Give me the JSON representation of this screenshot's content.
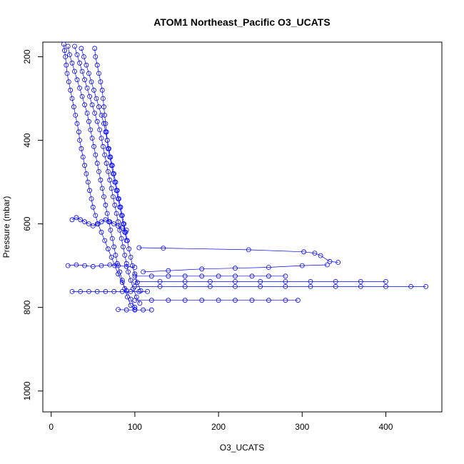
{
  "chart_data": {
    "type": "scatter",
    "title": "ATOM1 Northeast_Pacific O3_UCATS",
    "xlabel": "O3_UCATS",
    "ylabel": "Pressure (mbar)",
    "xlim": [
      -10,
      467
    ],
    "ylim": [
      1050,
      165
    ],
    "y_reversed": true,
    "xticks": [
      0,
      100,
      200,
      300,
      400
    ],
    "yticks": [
      200,
      400,
      600,
      800,
      1000
    ],
    "grid": false,
    "marker": "open-circle",
    "color": "#0000ff",
    "series": [
      {
        "points": [
          [
            15,
            170
          ],
          [
            16,
            185
          ],
          [
            17,
            200
          ],
          [
            18,
            220
          ],
          [
            19,
            240
          ],
          [
            21,
            260
          ],
          [
            23,
            280
          ],
          [
            25,
            300
          ],
          [
            27,
            320
          ],
          [
            29,
            340
          ],
          [
            31,
            360
          ],
          [
            33,
            380
          ],
          [
            34,
            400
          ],
          [
            36,
            420
          ],
          [
            38,
            440
          ],
          [
            40,
            460
          ],
          [
            42,
            480
          ],
          [
            44,
            500
          ],
          [
            46,
            520
          ],
          [
            48,
            540
          ],
          [
            50,
            560
          ],
          [
            53,
            580
          ],
          [
            56,
            600
          ],
          [
            60,
            620
          ],
          [
            64,
            640
          ],
          [
            68,
            660
          ],
          [
            72,
            680
          ],
          [
            76,
            700
          ],
          [
            80,
            720
          ],
          [
            85,
            740
          ],
          [
            90,
            760
          ],
          [
            95,
            780
          ],
          [
            100,
            800
          ]
        ]
      },
      {
        "points": [
          [
            20,
            175
          ],
          [
            22,
            195
          ],
          [
            25,
            215
          ],
          [
            28,
            235
          ],
          [
            31,
            255
          ],
          [
            34,
            275
          ],
          [
            37,
            295
          ],
          [
            40,
            315
          ],
          [
            43,
            335
          ],
          [
            45,
            355
          ],
          [
            47,
            375
          ],
          [
            49,
            395
          ],
          [
            51,
            415
          ],
          [
            53,
            435
          ],
          [
            55,
            455
          ],
          [
            57,
            475
          ],
          [
            59,
            495
          ],
          [
            61,
            515
          ],
          [
            63,
            535
          ],
          [
            65,
            555
          ],
          [
            67,
            575
          ],
          [
            69,
            595
          ],
          [
            71,
            615
          ],
          [
            73,
            635
          ],
          [
            75,
            655
          ],
          [
            77,
            675
          ],
          [
            79,
            695
          ],
          [
            82,
            715
          ],
          [
            85,
            735
          ],
          [
            88,
            755
          ],
          [
            91,
            775
          ],
          [
            95,
            795
          ],
          [
            100,
            805
          ]
        ]
      },
      {
        "points": [
          [
            28,
            175
          ],
          [
            31,
            195
          ],
          [
            34,
            215
          ],
          [
            37,
            235
          ],
          [
            40,
            255
          ],
          [
            43,
            275
          ],
          [
            46,
            295
          ],
          [
            49,
            315
          ],
          [
            52,
            335
          ],
          [
            55,
            355
          ],
          [
            58,
            375
          ],
          [
            60,
            395
          ],
          [
            62,
            415
          ],
          [
            64,
            435
          ],
          [
            66,
            455
          ],
          [
            68,
            475
          ],
          [
            70,
            495
          ],
          [
            72,
            515
          ],
          [
            74,
            535
          ],
          [
            76,
            555
          ],
          [
            78,
            575
          ],
          [
            80,
            595
          ],
          [
            82,
            615
          ],
          [
            84,
            635
          ],
          [
            86,
            655
          ],
          [
            88,
            675
          ],
          [
            90,
            695
          ],
          [
            92,
            715
          ],
          [
            95,
            735
          ],
          [
            98,
            755
          ],
          [
            102,
            775
          ],
          [
            106,
            790
          ]
        ]
      },
      {
        "points": [
          [
            36,
            180
          ],
          [
            39,
            200
          ],
          [
            42,
            220
          ],
          [
            45,
            240
          ],
          [
            48,
            260
          ],
          [
            51,
            280
          ],
          [
            54,
            300
          ],
          [
            57,
            320
          ],
          [
            60,
            340
          ],
          [
            63,
            360
          ],
          [
            65,
            380
          ],
          [
            67,
            400
          ],
          [
            69,
            420
          ],
          [
            71,
            440
          ],
          [
            73,
            460
          ],
          [
            75,
            480
          ],
          [
            77,
            500
          ],
          [
            79,
            520
          ],
          [
            81,
            540
          ],
          [
            83,
            560
          ],
          [
            85,
            580
          ],
          [
            87,
            600
          ],
          [
            89,
            620
          ],
          [
            91,
            640
          ],
          [
            93,
            660
          ],
          [
            95,
            680
          ],
          [
            97,
            700
          ],
          [
            100,
            720
          ],
          [
            103,
            740
          ],
          [
            107,
            760
          ]
        ]
      },
      {
        "points": [
          [
            52,
            180
          ],
          [
            53,
            200
          ],
          [
            55,
            220
          ],
          [
            57,
            240
          ],
          [
            59,
            260
          ],
          [
            61,
            280
          ],
          [
            62,
            300
          ],
          [
            63,
            320
          ],
          [
            64,
            340
          ],
          [
            65,
            360
          ],
          [
            66,
            380
          ],
          [
            67,
            400
          ],
          [
            68,
            420
          ],
          [
            70,
            440
          ],
          [
            72,
            460
          ],
          [
            74,
            480
          ],
          [
            76,
            500
          ],
          [
            78,
            520
          ],
          [
            80,
            540
          ],
          [
            82,
            560
          ],
          [
            84,
            580
          ],
          [
            86,
            600
          ],
          [
            88,
            620
          ],
          [
            90,
            640
          ]
        ]
      },
      {
        "points": [
          [
            25,
            590
          ],
          [
            30,
            585
          ],
          [
            35,
            590
          ],
          [
            40,
            595
          ],
          [
            45,
            600
          ],
          [
            50,
            605
          ],
          [
            55,
            600
          ],
          [
            60,
            595
          ],
          [
            65,
            590
          ],
          [
            70,
            595
          ],
          [
            75,
            600
          ],
          [
            80,
            605
          ],
          [
            85,
            610
          ],
          [
            90,
            615
          ]
        ]
      },
      {
        "points": [
          [
            20,
            700
          ],
          [
            30,
            698
          ],
          [
            40,
            700
          ],
          [
            50,
            702
          ],
          [
            60,
            700
          ],
          [
            70,
            698
          ],
          [
            80,
            700
          ],
          [
            90,
            702
          ],
          [
            100,
            704
          ]
        ]
      },
      {
        "points": [
          [
            25,
            762
          ],
          [
            35,
            762
          ],
          [
            45,
            762
          ],
          [
            55,
            762
          ],
          [
            65,
            762
          ],
          [
            75,
            762
          ],
          [
            85,
            762
          ],
          [
            95,
            762
          ],
          [
            105,
            762
          ],
          [
            115,
            762
          ]
        ]
      },
      {
        "points": [
          [
            80,
            805
          ],
          [
            90,
            806
          ],
          [
            100,
            806
          ],
          [
            110,
            806
          ],
          [
            120,
            806
          ]
        ]
      },
      {
        "points": [
          [
            105,
            657
          ],
          [
            134,
            658
          ],
          [
            236,
            662
          ],
          [
            302,
            667
          ],
          [
            315,
            670
          ],
          [
            322,
            676
          ],
          [
            333,
            690
          ],
          [
            343,
            692
          ]
        ]
      },
      {
        "points": [
          [
            110,
            715
          ],
          [
            140,
            712
          ],
          [
            180,
            708
          ],
          [
            220,
            706
          ],
          [
            260,
            704
          ],
          [
            300,
            700
          ],
          [
            330,
            698
          ]
        ]
      },
      {
        "points": [
          [
            100,
            725
          ],
          [
            120,
            725
          ],
          [
            140,
            725
          ],
          [
            160,
            725
          ],
          [
            180,
            725
          ],
          [
            200,
            725
          ],
          [
            220,
            725
          ],
          [
            240,
            725
          ],
          [
            260,
            725
          ],
          [
            280,
            725
          ]
        ]
      },
      {
        "points": [
          [
            100,
            738
          ],
          [
            130,
            738
          ],
          [
            160,
            738
          ],
          [
            190,
            738
          ],
          [
            220,
            738
          ],
          [
            250,
            738
          ],
          [
            280,
            738
          ],
          [
            310,
            738
          ],
          [
            340,
            738
          ],
          [
            370,
            738
          ],
          [
            400,
            738
          ]
        ]
      },
      {
        "points": [
          [
            100,
            750
          ],
          [
            130,
            750
          ],
          [
            160,
            750
          ],
          [
            190,
            750
          ],
          [
            220,
            750
          ],
          [
            250,
            750
          ],
          [
            280,
            750
          ],
          [
            310,
            750
          ],
          [
            340,
            750
          ],
          [
            370,
            750
          ],
          [
            400,
            750
          ],
          [
            430,
            750
          ],
          [
            448,
            750
          ]
        ]
      },
      {
        "points": [
          [
            100,
            783
          ],
          [
            120,
            783
          ],
          [
            140,
            783
          ],
          [
            160,
            783
          ],
          [
            180,
            783
          ],
          [
            200,
            783
          ],
          [
            220,
            783
          ],
          [
            240,
            783
          ],
          [
            260,
            783
          ],
          [
            280,
            783
          ],
          [
            295,
            783
          ]
        ]
      }
    ]
  }
}
